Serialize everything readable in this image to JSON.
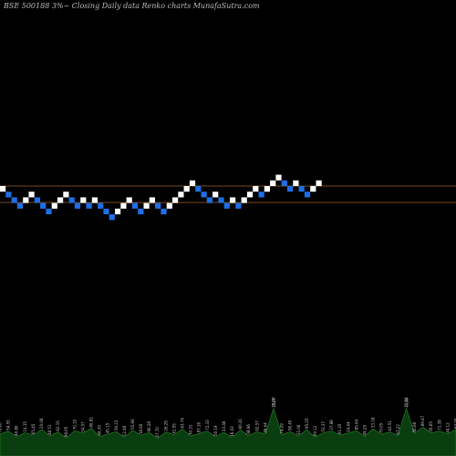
{
  "header": {
    "title": "BSE 500188  3%~   Closing Daily data  Renko  charts MunafaSutra.com"
  },
  "colors": {
    "background": "#000000",
    "up_brick": "#ffffff",
    "down_brick": "#1e6fe6",
    "guide_line": "#a0632a",
    "volume_area": "#0a3d10",
    "volume_line": "#2a8a2a"
  },
  "chart_data": {
    "type": "renko",
    "title": "BSE 500188  3%~   Closing Daily data  Renko  charts MunafaSutra.com",
    "bricks": [
      {
        "dir": "up",
        "level": 11
      },
      {
        "dir": "down",
        "level": 10
      },
      {
        "dir": "down",
        "level": 9
      },
      {
        "dir": "down",
        "level": 8
      },
      {
        "dir": "up",
        "level": 9
      },
      {
        "dir": "up",
        "level": 10
      },
      {
        "dir": "down",
        "level": 9
      },
      {
        "dir": "down",
        "level": 8
      },
      {
        "dir": "down",
        "level": 7
      },
      {
        "dir": "up",
        "level": 8
      },
      {
        "dir": "up",
        "level": 9
      },
      {
        "dir": "up",
        "level": 10
      },
      {
        "dir": "down",
        "level": 9
      },
      {
        "dir": "down",
        "level": 8
      },
      {
        "dir": "up",
        "level": 9
      },
      {
        "dir": "down",
        "level": 8
      },
      {
        "dir": "up",
        "level": 9
      },
      {
        "dir": "down",
        "level": 8
      },
      {
        "dir": "down",
        "level": 7
      },
      {
        "dir": "down",
        "level": 6
      },
      {
        "dir": "up",
        "level": 7
      },
      {
        "dir": "up",
        "level": 8
      },
      {
        "dir": "up",
        "level": 9
      },
      {
        "dir": "down",
        "level": 8
      },
      {
        "dir": "down",
        "level": 7
      },
      {
        "dir": "up",
        "level": 8
      },
      {
        "dir": "up",
        "level": 9
      },
      {
        "dir": "down",
        "level": 8
      },
      {
        "dir": "down",
        "level": 7
      },
      {
        "dir": "up",
        "level": 8
      },
      {
        "dir": "up",
        "level": 9
      },
      {
        "dir": "up",
        "level": 10
      },
      {
        "dir": "up",
        "level": 11
      },
      {
        "dir": "up",
        "level": 12
      },
      {
        "dir": "down",
        "level": 11
      },
      {
        "dir": "down",
        "level": 10
      },
      {
        "dir": "down",
        "level": 9
      },
      {
        "dir": "up",
        "level": 10
      },
      {
        "dir": "down",
        "level": 9
      },
      {
        "dir": "down",
        "level": 8
      },
      {
        "dir": "up",
        "level": 9
      },
      {
        "dir": "down",
        "level": 8
      },
      {
        "dir": "up",
        "level": 9
      },
      {
        "dir": "up",
        "level": 10
      },
      {
        "dir": "up",
        "level": 11
      },
      {
        "dir": "down",
        "level": 10
      },
      {
        "dir": "up",
        "level": 11
      },
      {
        "dir": "up",
        "level": 12
      },
      {
        "dir": "up",
        "level": 13
      },
      {
        "dir": "down",
        "level": 12
      },
      {
        "dir": "down",
        "level": 11
      },
      {
        "dir": "up",
        "level": 12
      },
      {
        "dir": "down",
        "level": 11
      },
      {
        "dir": "down",
        "level": 10
      },
      {
        "dir": "up",
        "level": 11
      },
      {
        "dir": "up",
        "level": 12
      }
    ],
    "guide_levels": [
      12,
      9
    ],
    "volume": [
      0.55,
      0.62,
      0.48,
      0.58,
      0.52,
      0.66,
      0.5,
      0.6,
      0.45,
      0.63,
      0.57,
      0.69,
      0.49,
      0.54,
      0.61,
      0.47,
      0.64,
      0.52,
      0.58,
      0.44,
      0.6,
      0.53,
      0.67,
      0.5,
      0.56,
      0.62,
      0.48,
      0.59,
      0.46,
      0.65,
      0.51,
      0.6,
      0.55,
      0.7,
      0.53,
      0.61,
      0.5,
      0.66,
      0.47,
      0.58,
      0.62,
      0.52,
      0.57,
      0.63,
      0.49,
      0.68,
      0.54,
      0.6,
      0.51,
      0.64,
      0.56,
      0.72,
      0.58,
      0.62,
      0.55,
      0.66
    ],
    "volume_labels": [
      "76.60",
      "54.55",
      "40.80",
      "14.15",
      "65.45",
      "20.08",
      "48.51",
      "62.15",
      "98.05",
      "70.10",
      "34.57",
      "80.81",
      "66.30",
      "45.15",
      "39.23",
      "12.48",
      "55.66",
      "18.60",
      "90.28",
      "47.70",
      "26.29",
      "41.55",
      "63.74",
      "30.31",
      "87.16",
      "72.33",
      "50.19",
      "23.46",
      "16.03",
      "60.41",
      "38.96",
      "92.57",
      "46.64",
      "28.77",
      "74.09",
      "58.40",
      "31.06",
      "95.25",
      "69.12",
      "53.37",
      "37.88",
      "61.20",
      "24.44",
      "85.64",
      "49.29",
      "33.18",
      "79.05",
      "43.51",
      "67.22",
      "21.14",
      "56.08",
      "89.47",
      "35.65",
      "71.39",
      "44.12",
      "64.05"
    ],
    "volume_peaks": [
      {
        "index": 33,
        "label": "0.49"
      },
      {
        "index": 49,
        "label": "0.35"
      }
    ]
  }
}
